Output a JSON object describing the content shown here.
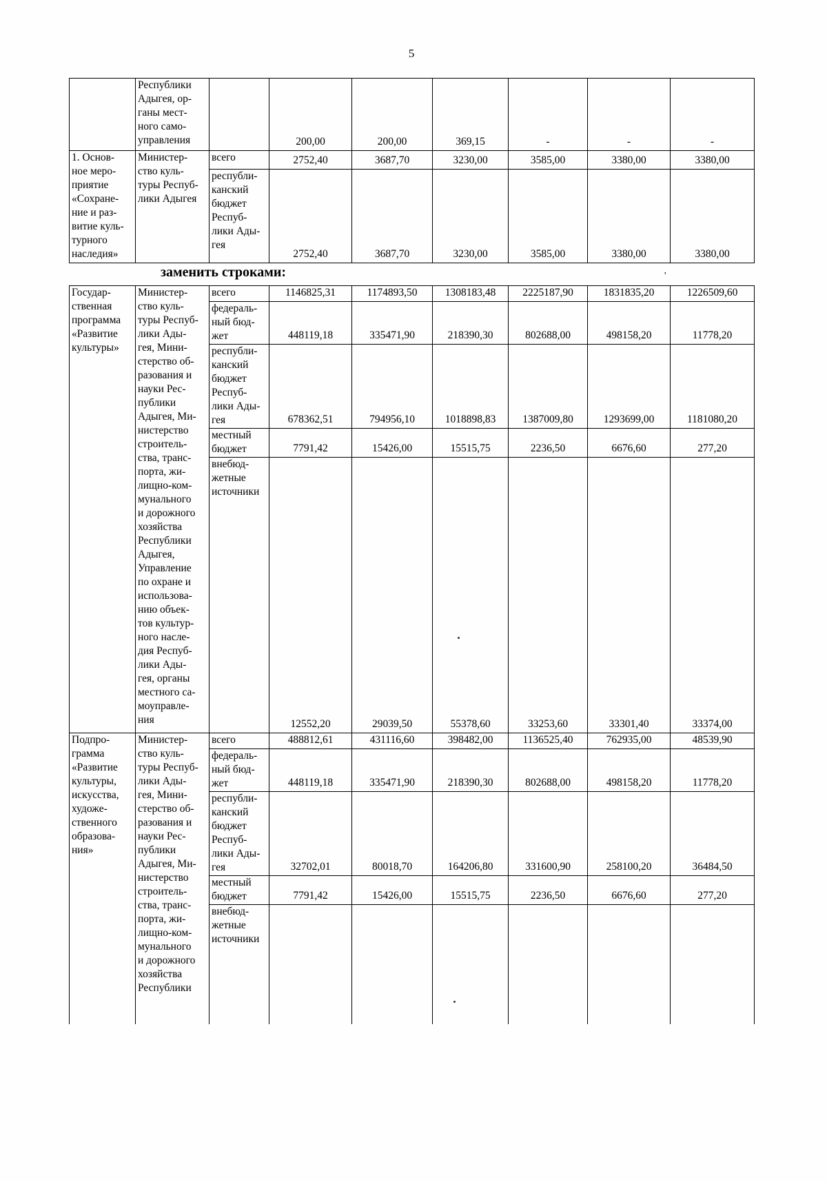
{
  "page_number": "5",
  "heading_between_tables": "заменить строками:",
  "artifacts": {
    "tick_mark": "'"
  },
  "table_top": {
    "rows": [
      {
        "program": "",
        "executor": "Республики\nАдыгея, ор-\nганы мест-\nного само-\nуправления",
        "subrows": [
          {
            "source": "",
            "values": [
              "200,00",
              "200,00",
              "369,15",
              "-",
              "-",
              "-"
            ]
          }
        ]
      },
      {
        "program": "1. Основ-\nное меро-\nприятие\n«Сохране-\nние и раз-\nвитие куль-\nтурного\nнаследия»",
        "executor": "Министер-\nство куль-\nтуры Респуб-\nлики Адыгея",
        "subrows": [
          {
            "source": "всего",
            "values": [
              "2752,40",
              "3687,70",
              "3230,00",
              "3585,00",
              "3380,00",
              "3380,00"
            ]
          },
          {
            "source": "республи-\nканский\nбюджет\nРеспуб-\nлики Ады-\nгея",
            "values": [
              "2752,40",
              "3687,70",
              "3230,00",
              "3585,00",
              "3380,00",
              "3380,00"
            ]
          }
        ]
      }
    ]
  },
  "table_replacement": {
    "rows": [
      {
        "program": "Государ-\nственная\nпрограмма\n«Развитие\nкультуры»",
        "executor": "Министер-\nство куль-\nтуры Респуб-\nлики Ады-\nгея, Мини-\nстерство об-\nразования и\nнауки Рес-\nпублики\nАдыгея, Ми-\nнистерство\nстроитель-\nства, транс-\nпорта, жи-\nлищно-ком-\nмунального\nи дорожного\nхозяйства\nРеспублики\nАдыгея,\nУправление\nпо охране и\nиспользова-\nнию объек-\nтов культур-\nного насле-\nдия Респуб-\nлики Ады-\nгея, органы\nместного са-\nмоуправле-\nния",
        "subrows": [
          {
            "source": "всего",
            "values": [
              "1146825,31",
              "1174893,50",
              "1308183,48",
              "2225187,90",
              "1831835,20",
              "1226509,60"
            ]
          },
          {
            "source": "федераль-\nный бюд-\nжет",
            "values": [
              "448119,18",
              "335471,90",
              "218390,30",
              "802688,00",
              "498158,20",
              "11778,20"
            ]
          },
          {
            "source": "республи-\nканский\nбюджет\nРеспуб-\nлики Ады-\nгея",
            "values": [
              "678362,51",
              "794956,10",
              "1018898,83",
              "1387009,80",
              "1293699,00",
              "1181080,20"
            ]
          },
          {
            "source": "местный\nбюджет",
            "values": [
              "7791,42",
              "15426,00",
              "15515,75",
              "2236,50",
              "6676,60",
              "277,20"
            ]
          },
          {
            "source": "внебюд-\nжетные\nисточники",
            "values": [
              "12552,20",
              "29039,50",
              "55378,60",
              "33253,60",
              "33301,40",
              "33374,00"
            ]
          }
        ]
      },
      {
        "program": "Подпро-\nграмма\n«Развитие\nкультуры,\nискусства,\nхудоже-\nственного\nобразова-\nния»",
        "executor": "Министер-\nство куль-\nтуры Респуб-\nлики Ады-\nгея, Мини-\nстерство об-\nразования и\nнауки Рес-\nпублики\nАдыгея, Ми-\nнистерство\nстроитель-\nства, транс-\nпорта, жи-\nлищно-ком-\nмунального\nи дорожного\nхозяйства\nРеспублики",
        "subrows": [
          {
            "source": "всего",
            "values": [
              "488812,61",
              "431116,60",
              "398482,00",
              "1136525,40",
              "762935,00",
              "48539,90"
            ]
          },
          {
            "source": "федераль-\nный бюд-\nжет",
            "values": [
              "448119,18",
              "335471,90",
              "218390,30",
              "802688,00",
              "498158,20",
              "11778,20"
            ]
          },
          {
            "source": "республи-\nканский\nбюджет\nРеспуб-\nлики Ады-\nгея",
            "values": [
              "32702,01",
              "80018,70",
              "164206,80",
              "331600,90",
              "258100,20",
              "36484,50"
            ]
          },
          {
            "source": "местный\nбюджет",
            "values": [
              "7791,42",
              "15426,00",
              "15515,75",
              "2236,50",
              "6676,60",
              "277,20"
            ]
          },
          {
            "source": "внебюд-\nжетные\nисточники",
            "values": [
              "",
              "",
              "",
              "",
              "",
              ""
            ]
          }
        ]
      }
    ]
  }
}
